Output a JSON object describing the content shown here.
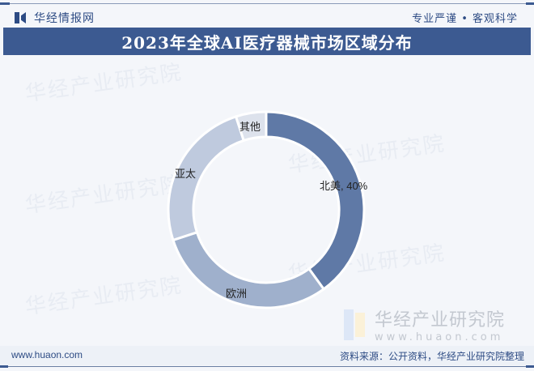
{
  "header": {
    "brand_name": "华经情报网",
    "slogan": "专业严谨 • 客观科学",
    "title": "2023年全球AI医疗器械市场区域分布"
  },
  "watermark": {
    "text": "华经产业研究院",
    "url": "www.huaon.com"
  },
  "footer": {
    "site": "www.huaon.com",
    "source": "资料来源：公开资料，华经产业研究院整理"
  },
  "labels": {
    "north_america": "北美, 40%",
    "europe": "欧洲",
    "apac": "亚太",
    "other": "其他"
  },
  "chart_data": {
    "type": "pie",
    "subtype": "donut",
    "title": "2023年全球AI医疗器械市场区域分布",
    "categories": [
      "北美",
      "欧洲",
      "亚太",
      "其他"
    ],
    "values": [
      40,
      30,
      25,
      5
    ],
    "unit": "%",
    "colors": [
      "#5f79a6",
      "#9fb0cc",
      "#bfcade",
      "#dde2ec"
    ],
    "data_labels": [
      "北美, 40%",
      "欧洲",
      "亚太",
      "其他"
    ],
    "start_angle": 0,
    "direction": "clockwise",
    "legend": "none"
  }
}
